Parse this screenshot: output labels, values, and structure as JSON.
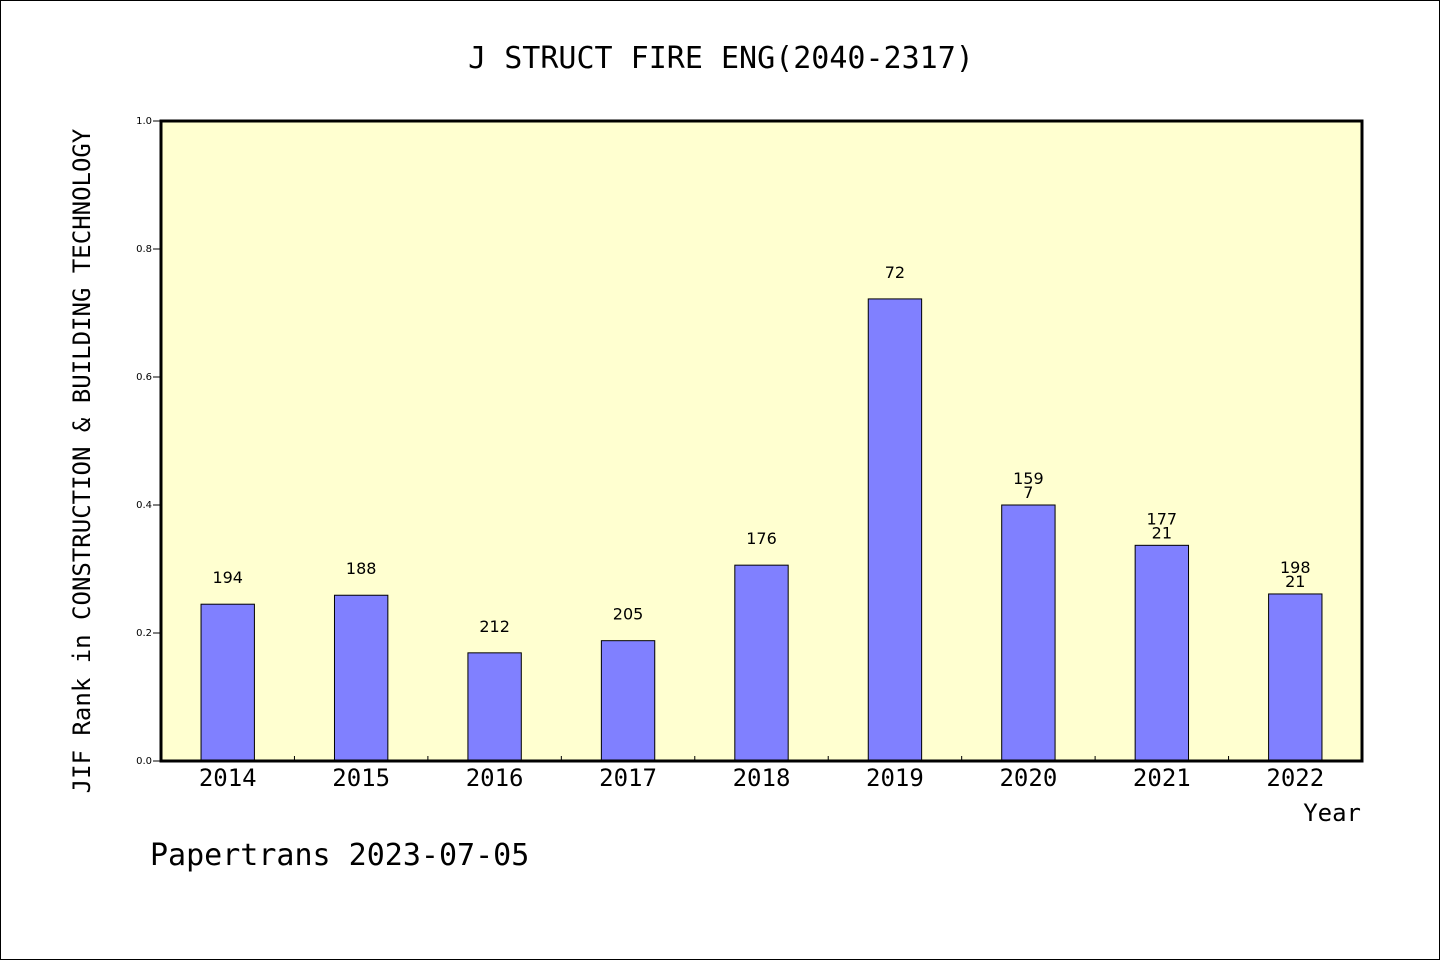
{
  "chart_data": {
    "type": "bar",
    "title": "J STRUCT FIRE ENG(2040-2317)",
    "xlabel": "Year",
    "ylabel": "JIF Rank in CONSTRUCTION & BUILDING TECHNOLOGY",
    "ylim": [
      0,
      1.0
    ],
    "yticks": [
      "0.0",
      "0.2",
      "0.4",
      "0.6",
      "0.8",
      "1.0"
    ],
    "categories": [
      "2014",
      "2015",
      "2016",
      "2017",
      "2018",
      "2019",
      "2020",
      "2021",
      "2022"
    ],
    "values": [
      0.245,
      0.259,
      0.169,
      0.188,
      0.306,
      0.722,
      0.4,
      0.337,
      0.261
    ],
    "bar_labels": [
      [
        "194"
      ],
      [
        "188"
      ],
      [
        "212"
      ],
      [
        "205"
      ],
      [
        "176"
      ],
      [
        "72"
      ],
      [
        "159",
        "7"
      ],
      [
        "177",
        "21"
      ],
      [
        "198",
        "21"
      ]
    ],
    "grid": false,
    "plot_background": "#ffffd0",
    "bar_color": "#8080ff"
  },
  "footer": {
    "text": "Papertrans 2023-07-05"
  }
}
